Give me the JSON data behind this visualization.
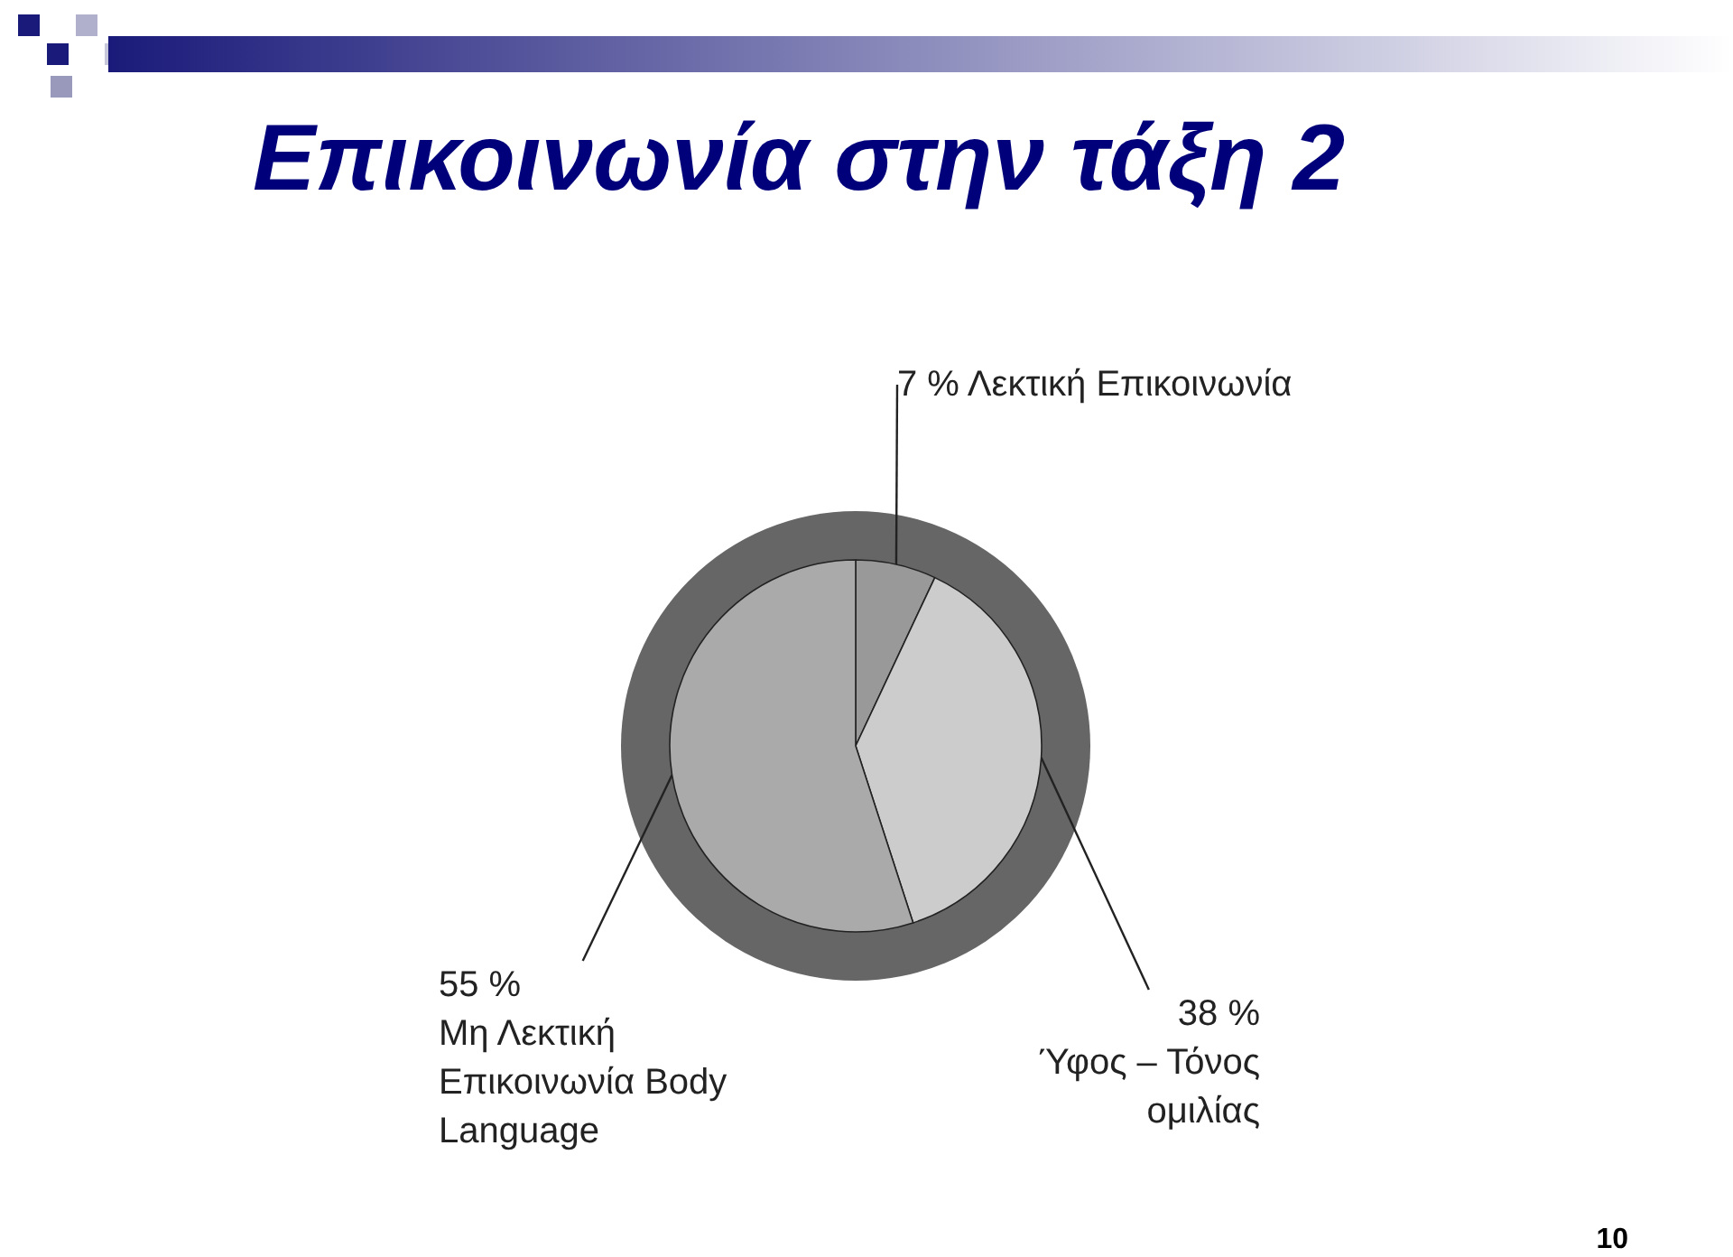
{
  "chart_data": {
    "type": "pie",
    "title": "Επικοινωνία στην τάξη 2",
    "categories": [
      "Λεκτική Επικοινωνία",
      "Ύφος – Τόνος ομιλίας",
      "Μη Λεκτική Επικοινωνία Body Language"
    ],
    "values": [
      7,
      38,
      55
    ],
    "colors": [
      "#999999",
      "#cccccc",
      "#aaaaaa"
    ],
    "value_labels": [
      "7 %",
      "38 %",
      "55 %"
    ],
    "legend": false,
    "annotations": [
      "10"
    ]
  }
}
